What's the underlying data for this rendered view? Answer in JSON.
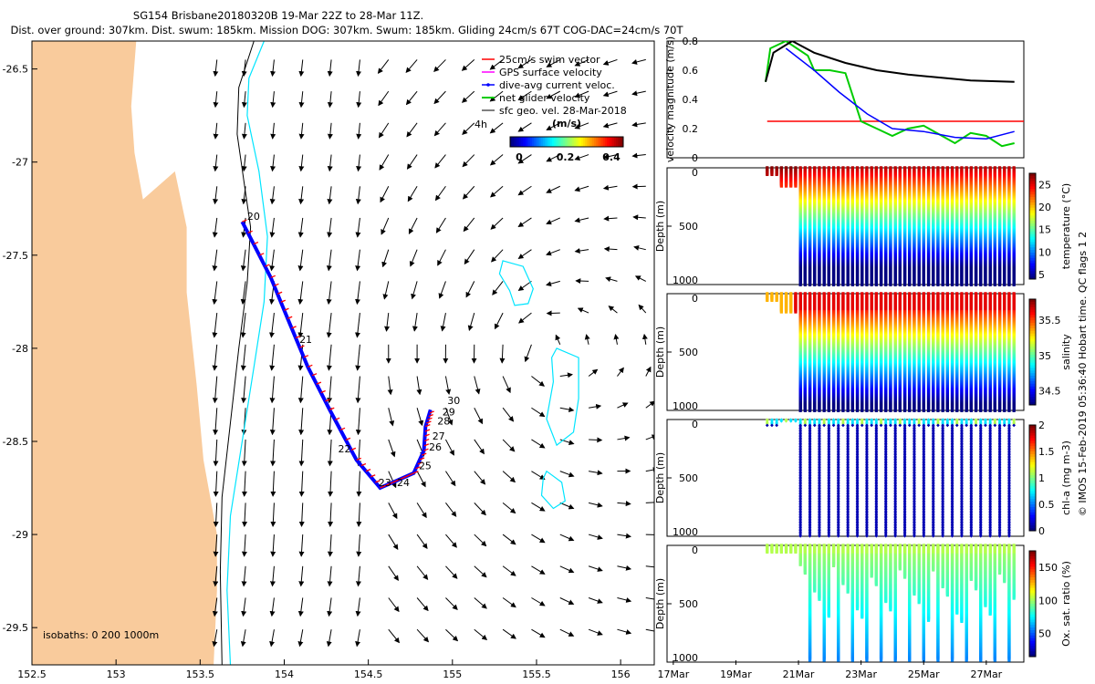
{
  "title": {
    "line1": "SG154 Brisbane20180320B 19-Mar 22Z to 28-Mar 11Z.",
    "line2": "Dist. over ground: 307km. Dist. swum: 185km. Mission DOG: 307km. Swum: 185km. Gliding 24cm/s 67T COG-DAC=24cm/s 70T"
  },
  "copyright": "© IMOS 15-Feb-2019 05:36:40 Hobart time. QC flags 1  2",
  "map": {
    "xlim": [
      152.5,
      156.2
    ],
    "ylim": [
      -29.7,
      -26.35
    ],
    "xticks": [
      "152.5",
      "153",
      "153.5",
      "154",
      "154.5",
      "155",
      "155.5",
      "156"
    ],
    "yticks": [
      "-26.5",
      "-27",
      "-27.5",
      "-28",
      "-28.5",
      "-29",
      "-29.5"
    ],
    "isobaths_label": "isobaths: 0   200  1000m",
    "legend": [
      "25cm/s swim vector",
      "GPS surface velocity",
      "dive-avg current veloc.",
      "net glider velocity",
      "sfc geo. vel. 28-Mar-2018"
    ],
    "colors": {
      "land": "#f9cb9c",
      "swim": "#ff0000",
      "gps": "#ff00ff",
      "dac": "#0000ff",
      "net": "#00cc00",
      "contour": "#00e5ff"
    },
    "colorbar": {
      "title": "(m/s)",
      "ticks": [
        "0",
        "0.2",
        "0.4"
      ]
    },
    "time_marker": "4h",
    "day_labels": [
      {
        "label": "20",
        "lon": 153.78,
        "lat": -27.31
      },
      {
        "label": "21",
        "lon": 154.09,
        "lat": -27.97
      },
      {
        "label": "22",
        "lon": 154.32,
        "lat": -28.56
      },
      {
        "label": "23",
        "lon": 154.56,
        "lat": -28.74
      },
      {
        "label": "24",
        "lon": 154.67,
        "lat": -28.74
      },
      {
        "label": "25",
        "lon": 154.8,
        "lat": -28.65
      },
      {
        "label": "26",
        "lon": 154.86,
        "lat": -28.55
      },
      {
        "label": "27",
        "lon": 154.88,
        "lat": -28.49
      },
      {
        "label": "28",
        "lon": 154.91,
        "lat": -28.41
      },
      {
        "label": "29",
        "lon": 154.94,
        "lat": -28.36
      },
      {
        "label": "30",
        "lon": 154.97,
        "lat": -28.3
      }
    ],
    "track": [
      [
        153.75,
        -27.32
      ],
      [
        153.92,
        -27.62
      ],
      [
        154.02,
        -27.84
      ],
      [
        154.14,
        -28.1
      ],
      [
        154.27,
        -28.33
      ],
      [
        154.43,
        -28.6
      ],
      [
        154.57,
        -28.75
      ],
      [
        154.67,
        -28.71
      ],
      [
        154.77,
        -28.67
      ],
      [
        154.83,
        -28.55
      ],
      [
        154.84,
        -28.42
      ],
      [
        154.87,
        -28.33
      ]
    ],
    "eddy_contours": [
      [
        [
          155.3,
          -27.53
        ],
        [
          155.42,
          -27.56
        ],
        [
          155.48,
          -27.68
        ],
        [
          155.45,
          -27.76
        ],
        [
          155.37,
          -27.77
        ],
        [
          155.34,
          -27.69
        ],
        [
          155.28,
          -27.6
        ]
      ],
      [
        [
          155.62,
          -28.0
        ],
        [
          155.75,
          -28.05
        ],
        [
          155.75,
          -28.27
        ],
        [
          155.72,
          -28.45
        ],
        [
          155.62,
          -28.52
        ],
        [
          155.56,
          -28.38
        ],
        [
          155.6,
          -28.18
        ],
        [
          155.59,
          -28.05
        ]
      ],
      [
        [
          155.56,
          -28.66
        ],
        [
          155.65,
          -28.72
        ],
        [
          155.67,
          -28.82
        ],
        [
          155.6,
          -28.86
        ],
        [
          155.53,
          -28.79
        ],
        [
          155.54,
          -28.7
        ]
      ]
    ],
    "shelf_200m": [
      [
        153.88,
        -26.35
      ],
      [
        153.79,
        -26.55
      ],
      [
        153.78,
        -26.75
      ],
      [
        153.85,
        -27.05
      ],
      [
        153.9,
        -27.4
      ],
      [
        153.88,
        -27.75
      ],
      [
        153.82,
        -28.1
      ],
      [
        153.75,
        -28.5
      ],
      [
        153.68,
        -28.9
      ],
      [
        153.66,
        -29.3
      ],
      [
        153.68,
        -29.7
      ]
    ],
    "slope_1000m": [
      [
        153.82,
        -26.35
      ],
      [
        153.73,
        -26.6
      ],
      [
        153.72,
        -26.85
      ],
      [
        153.76,
        -27.1
      ],
      [
        153.8,
        -27.35
      ],
      [
        153.78,
        -27.65
      ],
      [
        153.73,
        -28.0
      ],
      [
        153.68,
        -28.4
      ],
      [
        153.63,
        -28.8
      ],
      [
        153.62,
        -29.2
      ],
      [
        153.63,
        -29.7
      ]
    ],
    "coast": [
      [
        152.5,
        -26.35
      ],
      [
        153.12,
        -26.35
      ],
      [
        153.09,
        -26.7
      ],
      [
        153.11,
        -26.95
      ],
      [
        153.16,
        -27.2
      ],
      [
        153.35,
        -27.05
      ],
      [
        153.42,
        -27.35
      ],
      [
        153.42,
        -27.7
      ],
      [
        153.45,
        -27.95
      ],
      [
        153.48,
        -28.2
      ],
      [
        153.52,
        -28.6
      ],
      [
        153.6,
        -29.0
      ],
      [
        153.6,
        -29.3
      ],
      [
        153.58,
        -29.7
      ],
      [
        152.5,
        -29.7
      ]
    ]
  },
  "velocity_panel": {
    "ylabel": "velocity magnitude (m/s)",
    "ylim": [
      0,
      0.8
    ],
    "yticks": [
      "0",
      "0.2",
      "0.4",
      "0.6",
      "0.8"
    ],
    "swim_speed": 0.25,
    "net_glider_velocity": [
      [
        19.95,
        0.52
      ],
      [
        20.1,
        0.75
      ],
      [
        20.6,
        0.8
      ],
      [
        21.3,
        0.7
      ],
      [
        21.5,
        0.6
      ],
      [
        22.0,
        0.6
      ],
      [
        22.5,
        0.58
      ],
      [
        23.0,
        0.25
      ],
      [
        23.5,
        0.2
      ],
      [
        24.0,
        0.15
      ],
      [
        24.5,
        0.2
      ],
      [
        25.0,
        0.22
      ],
      [
        25.5,
        0.16
      ],
      [
        26.0,
        0.1
      ],
      [
        26.5,
        0.17
      ],
      [
        27.0,
        0.15
      ],
      [
        27.5,
        0.08
      ],
      [
        27.9,
        0.1
      ]
    ],
    "dive_avg_current": [
      [
        20.6,
        0.75
      ],
      [
        21.5,
        0.6
      ],
      [
        22.3,
        0.45
      ],
      [
        23.2,
        0.3
      ],
      [
        24.0,
        0.2
      ],
      [
        25.0,
        0.18
      ],
      [
        26.0,
        0.14
      ],
      [
        27.0,
        0.13
      ],
      [
        27.9,
        0.18
      ]
    ],
    "sfc_geo_velocity": [
      [
        19.95,
        0.52
      ],
      [
        20.2,
        0.72
      ],
      [
        20.8,
        0.8
      ],
      [
        21.5,
        0.72
      ],
      [
        22.5,
        0.65
      ],
      [
        23.5,
        0.6
      ],
      [
        24.5,
        0.57
      ],
      [
        25.5,
        0.55
      ],
      [
        26.5,
        0.53
      ],
      [
        27.9,
        0.52
      ]
    ]
  },
  "section_panels": [
    {
      "name": "temperature",
      "ylabel": "Depth (m)",
      "cbar_label": "temperature (°C)",
      "cbar_ticks": [
        "5",
        "10",
        "15",
        "20",
        "25"
      ],
      "cmin": 4,
      "cmax": 27.5,
      "vmin_val": 4,
      "vmax_val": 27
    },
    {
      "name": "salinity",
      "ylabel": "Depth (m)",
      "cbar_label": "salinity",
      "cbar_ticks": [
        "34.5",
        "35",
        "35.5"
      ],
      "cmin": 34.3,
      "cmax": 35.8,
      "vmin_val": 34.35,
      "vmax_val": 35.7
    },
    {
      "name": "chlorophyll",
      "ylabel": "Depth (m)",
      "cbar_label": "chl-a (mg m-3)",
      "cbar_ticks": [
        "0",
        "0.5",
        "1",
        "1.5",
        "2"
      ],
      "cmin": 0,
      "cmax": 2,
      "vmin_val": 0,
      "vmax_val": 2
    },
    {
      "name": "oxygen",
      "ylabel": "Depth (m)",
      "cbar_label": "Ox. sat. ratio (%)",
      "cbar_ticks": [
        "50",
        "100",
        "150"
      ],
      "cmin": 15,
      "cmax": 175,
      "vmin_val": 15,
      "vmax_val": 170
    }
  ],
  "depth_ticks": [
    "0",
    "500",
    "1000"
  ],
  "time_axis": {
    "xlim": [
      16.8,
      28.2
    ],
    "ticks": [
      "17Mar",
      "19Mar",
      "21Mar",
      "23Mar",
      "25Mar",
      "27Mar"
    ],
    "data_start": 20.0,
    "data_end": 27.9
  }
}
